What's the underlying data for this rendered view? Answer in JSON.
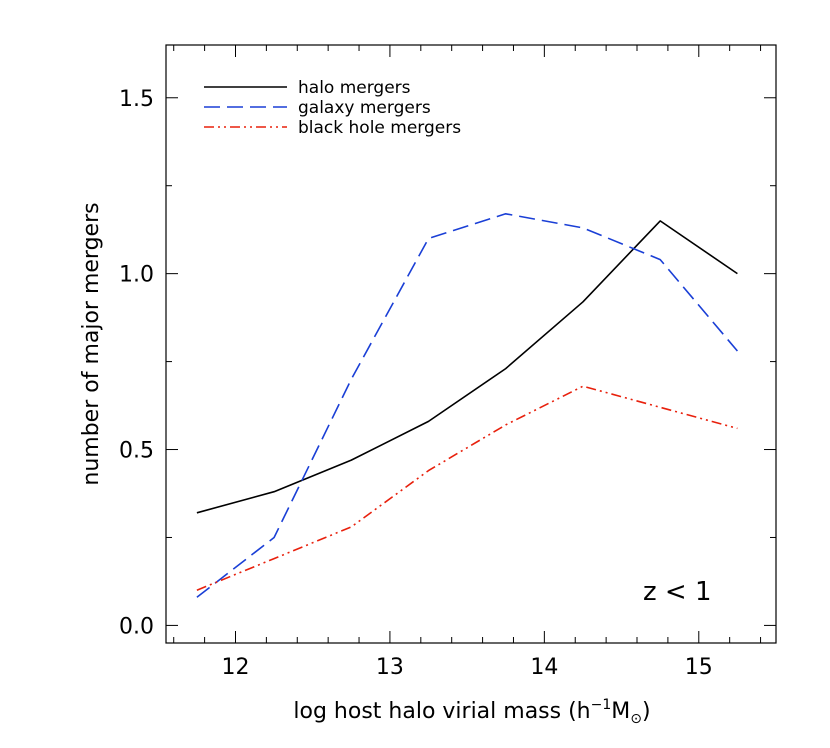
{
  "chart_data": {
    "type": "line",
    "xlabel": "log host halo virial mass (h",
    "xlabel_parts": {
      "main": "log host halo virial mass (h",
      "sup": "−1",
      "unit": "M",
      "unit_sub": "⊙",
      "close": ")"
    },
    "ylabel": "number of major mergers",
    "xlim": [
      11.55,
      15.5
    ],
    "ylim": [
      -0.05,
      1.65
    ],
    "xticks": [
      12,
      13,
      14,
      15
    ],
    "xtick_labels": [
      "12",
      "13",
      "14",
      "15"
    ],
    "yticks": [
      0.0,
      0.5,
      1.0,
      1.5
    ],
    "ytick_labels": [
      "0.0",
      "0.5",
      "1.0",
      "1.5"
    ],
    "legend_position": "top-left",
    "annotation": "z < 1",
    "series": [
      {
        "name": "halo mergers",
        "color": "#000000",
        "style": "solid",
        "x": [
          11.75,
          12.25,
          12.75,
          13.25,
          13.75,
          14.25,
          14.75,
          15.25
        ],
        "y": [
          0.32,
          0.38,
          0.47,
          0.58,
          0.73,
          0.92,
          1.15,
          1.0
        ]
      },
      {
        "name": "galaxy mergers",
        "color": "#1a3fd6",
        "style": "dashed",
        "x": [
          11.75,
          12.25,
          12.75,
          13.25,
          13.75,
          14.25,
          14.75,
          15.25
        ],
        "y": [
          0.08,
          0.25,
          0.7,
          1.1,
          1.17,
          1.13,
          1.04,
          0.78
        ]
      },
      {
        "name": "black hole mergers",
        "color": "#e8200c",
        "style": "dash-dot-dot",
        "x": [
          11.75,
          12.25,
          12.75,
          13.25,
          13.75,
          14.25,
          14.75,
          15.25
        ],
        "y": [
          0.1,
          0.19,
          0.28,
          0.44,
          0.57,
          0.68,
          0.62,
          0.56
        ]
      }
    ]
  }
}
